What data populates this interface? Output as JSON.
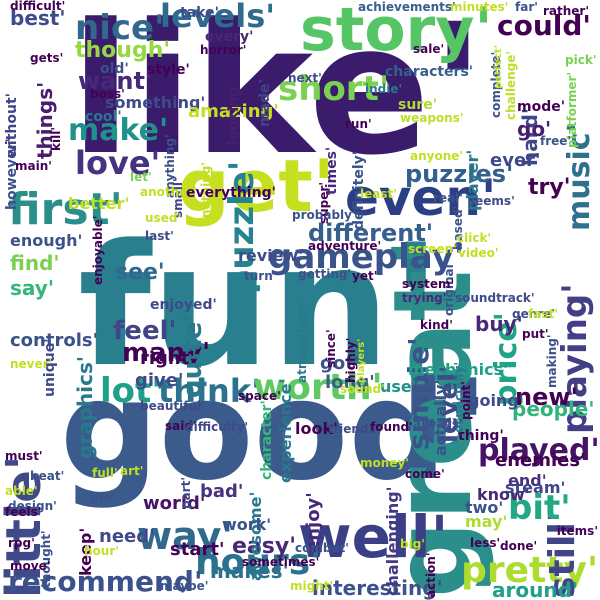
{
  "word_cloud": {
    "words": [
      {
        "id": "like",
        "text": "like'",
        "color": "#3b1b6b"
      },
      {
        "id": "fun",
        "text": "fun'",
        "color": "#2a7f8e"
      },
      {
        "id": "good",
        "text": "good'",
        "color": "#3a5b8c"
      },
      {
        "id": "great",
        "text": "great'",
        "color": "#2b8e8a"
      },
      {
        "id": "story",
        "text": "story'",
        "color": "#56c566"
      },
      {
        "id": "get",
        "text": "get'",
        "color": "#c6e021"
      },
      {
        "id": "well",
        "text": "well'",
        "color": "#3a3f86"
      },
      {
        "id": "first",
        "text": "first'",
        "color": "#2a8f8b"
      },
      {
        "id": "even",
        "text": "even'",
        "color": "#2b3f85"
      },
      {
        "id": "little",
        "text": "little'",
        "color": "#3f4a8a"
      },
      {
        "id": "nice",
        "text": "nice'",
        "color": "#31698e"
      },
      {
        "id": "levels",
        "text": "levels'",
        "color": "#2f6b8e"
      },
      {
        "id": "puzzle",
        "text": "puzzle'",
        "color": "#26828e"
      },
      {
        "id": "music",
        "text": "music'",
        "color": "#2d718e"
      },
      {
        "id": "gameplay",
        "text": "gameplay'",
        "color": "#3a538b"
      },
      {
        "id": "playing",
        "text": "playing'",
        "color": "#433e85"
      },
      {
        "id": "lot",
        "text": "lot'",
        "color": "#1fa088"
      },
      {
        "id": "think",
        "text": "think'",
        "color": "#2c728e"
      },
      {
        "id": "worth",
        "text": "worth'",
        "color": "#5ec962"
      },
      {
        "id": "played",
        "text": "played'",
        "color": "#471365"
      },
      {
        "id": "pretty",
        "text": "pretty'",
        "color": "#addc30"
      },
      {
        "id": "still",
        "text": "still'",
        "color": "#414487"
      },
      {
        "id": "bit",
        "text": "bit'",
        "color": "#22a884"
      },
      {
        "id": "hours",
        "text": "hours'",
        "color": "#2c728e"
      },
      {
        "id": "recommend",
        "text": "recommend'",
        "color": "#3b528b"
      },
      {
        "id": "way",
        "text": "way'",
        "color": "#31688e"
      },
      {
        "id": "short",
        "text": "short'",
        "color": "#7ad151"
      },
      {
        "id": "make",
        "text": "make'",
        "color": "#21918c"
      },
      {
        "id": "love",
        "text": "love'",
        "color": "#46327e"
      },
      {
        "id": "simple",
        "text": "simple'",
        "color": "#3b528b"
      },
      {
        "id": "level",
        "text": "level'",
        "color": "#3e4a89"
      },
      {
        "id": "price",
        "text": "price'",
        "color": "#20a386"
      },
      {
        "id": "could",
        "text": "could'",
        "color": "#440154"
      },
      {
        "id": "hard",
        "text": "hard'",
        "color": "#414487"
      },
      {
        "id": "puzzles",
        "text": "puzzles'",
        "color": "#355f8d"
      },
      {
        "id": "though",
        "text": "though'",
        "color": "#95d840"
      },
      {
        "id": "want",
        "text": "want'",
        "color": "#482878"
      },
      {
        "id": "things",
        "text": "things'",
        "color": "#481f70"
      },
      {
        "id": "best",
        "text": "best'",
        "color": "#3e4a89"
      },
      {
        "id": "feel",
        "text": "feel'",
        "color": "#414487"
      },
      {
        "id": "many",
        "text": "many'",
        "color": "#440154"
      },
      {
        "id": "quite",
        "text": "quite'",
        "color": "#2a788e"
      },
      {
        "id": "see",
        "text": "see'",
        "color": "#31688e"
      },
      {
        "id": "find",
        "text": "find'",
        "color": "#7ad151"
      },
      {
        "id": "say",
        "text": "say'",
        "color": "#35b779"
      },
      {
        "id": "different",
        "text": "different'",
        "color": "#355f8d"
      },
      {
        "id": "new",
        "text": "new'",
        "color": "#440154"
      },
      {
        "id": "graphics",
        "text": "graphics'",
        "color": "#2a788e"
      },
      {
        "id": "go",
        "text": "go'",
        "color": "#481f70"
      },
      {
        "id": "ever",
        "text": "ever'",
        "color": "#3e4a89"
      },
      {
        "id": "try",
        "text": "try'",
        "color": "#440154"
      },
      {
        "id": "easy",
        "text": "easy'",
        "color": "#482878"
      },
      {
        "id": "makes",
        "text": "makes'",
        "color": "#2c728e"
      },
      {
        "id": "interesting",
        "text": "interesting'",
        "color": "#3b528b"
      },
      {
        "id": "around",
        "text": "around'",
        "color": "#1fa088"
      },
      {
        "id": "people",
        "text": "people'",
        "color": "#2fb47c"
      },
      {
        "id": "enemies",
        "text": "enemies'",
        "color": "#440154"
      },
      {
        "id": "end",
        "text": "end'",
        "color": "#46327e"
      },
      {
        "id": "buy",
        "text": "buy'",
        "color": "#482878"
      },
      {
        "id": "actually",
        "text": "actually'",
        "color": "#3b528b"
      },
      {
        "id": "mechanics",
        "text": "mechanics'",
        "color": "#1fa088"
      },
      {
        "id": "review",
        "text": "review'",
        "color": "#3e4a89"
      },
      {
        "id": "controls",
        "text": "controls'",
        "color": "#3b528b"
      },
      {
        "id": "enjoyed",
        "text": "enjoyed'",
        "color": "#3e4a89"
      },
      {
        "id": "long",
        "text": "long'",
        "color": "#355f8d"
      },
      {
        "id": "got",
        "text": "got'",
        "color": "#3b528b"
      },
      {
        "id": "right",
        "text": "right'",
        "color": "#440154"
      },
      {
        "id": "give",
        "text": "give'",
        "color": "#3e4a89"
      },
      {
        "id": "use",
        "text": "use'",
        "color": "#21918c"
      },
      {
        "id": "look",
        "text": "look'",
        "color": "#440154"
      },
      {
        "id": "world",
        "text": "world'",
        "color": "#471365"
      },
      {
        "id": "enjoy",
        "text": "enjoy'",
        "color": "#482878"
      },
      {
        "id": "awesome",
        "text": "awesome'",
        "color": "#2a788e"
      },
      {
        "id": "bad",
        "text": "bad'",
        "color": "#46327e"
      },
      {
        "id": "start",
        "text": "start'",
        "color": "#440154"
      },
      {
        "id": "need",
        "text": "need'",
        "color": "#3e4a89"
      },
      {
        "id": "work",
        "text": "work'",
        "color": "#3b528b"
      },
      {
        "id": "experience",
        "text": "experience'",
        "color": "#2a788e"
      },
      {
        "id": "challenging",
        "text": "challenging'",
        "color": "#443983"
      },
      {
        "id": "going",
        "text": "going'",
        "color": "#3e4a89"
      },
      {
        "id": "keep",
        "text": "keep'",
        "color": "#440154"
      },
      {
        "id": "know",
        "text": "know'",
        "color": "#482878"
      },
      {
        "id": "steam",
        "text": "steam'",
        "color": "#414487"
      },
      {
        "id": "thing",
        "text": "thing'",
        "color": "#440154"
      },
      {
        "id": "two",
        "text": "two'",
        "color": "#3b528b"
      },
      {
        "id": "may",
        "text": "may'",
        "color": "#addc30"
      },
      {
        "id": "character",
        "text": "character'",
        "color": "#35b779"
      },
      {
        "id": "characters",
        "text": "characters'",
        "color": "#355f8d"
      },
      {
        "id": "player",
        "text": "player'",
        "color": "#2a788e"
      },
      {
        "id": "mode",
        "text": "mode'",
        "color": "#440154"
      },
      {
        "id": "enough",
        "text": "enough'",
        "color": "#3b528b"
      },
      {
        "id": "better",
        "text": "better'",
        "color": "#bddf26"
      },
      {
        "id": "something",
        "text": "something'",
        "color": "#3e4a89"
      },
      {
        "id": "amazing",
        "text": "amazing'",
        "color": "#c2df23"
      },
      {
        "id": "looking",
        "text": "looking'",
        "color": "#481f70"
      },
      {
        "id": "made",
        "text": "made'",
        "color": "#414487"
      },
      {
        "id": "style",
        "text": "style'",
        "color": "#440154"
      },
      {
        "id": "old",
        "text": "old'",
        "color": "#3b528b"
      },
      {
        "id": "take",
        "text": "take'",
        "color": "#3e4a89"
      },
      {
        "id": "every",
        "text": "every'",
        "color": "#482878"
      },
      {
        "id": "difficult",
        "text": "difficult'",
        "color": "#440154"
      },
      {
        "id": "achievements",
        "text": "achievements'",
        "color": "#355f8d"
      },
      {
        "id": "minutes",
        "text": "minutes'",
        "color": "#c2df23"
      },
      {
        "id": "far",
        "text": "far'",
        "color": "#3b528b"
      },
      {
        "id": "rather",
        "text": "rather'",
        "color": "#440154"
      },
      {
        "id": "definitely",
        "text": "definitely'",
        "color": "#3b528b"
      },
      {
        "id": "times",
        "text": "times'",
        "color": "#482878"
      },
      {
        "id": "run",
        "text": "run'",
        "color": "#440154"
      },
      {
        "id": "sure",
        "text": "sure'",
        "color": "#addc30"
      },
      {
        "id": "weapons",
        "text": "weapons'",
        "color": "#bddf26"
      },
      {
        "id": "next",
        "text": "next'",
        "color": "#3e4a89"
      },
      {
        "id": "indie",
        "text": "indie'",
        "color": "#2a788e"
      },
      {
        "id": "sale",
        "text": "sale'",
        "color": "#440154"
      },
      {
        "id": "complete",
        "text": "complete'",
        "color": "#3b528b"
      },
      {
        "id": "perfect",
        "text": "perfect'",
        "color": "#bddf26"
      },
      {
        "id": "pick",
        "text": "pick'",
        "color": "#7ad151"
      },
      {
        "id": "challenge",
        "text": "challenge'",
        "color": "#bddf26"
      },
      {
        "id": "platformer",
        "text": "platformer'",
        "color": "#7ad151"
      },
      {
        "id": "free",
        "text": "free'",
        "color": "#3b528b"
      },
      {
        "id": "anyone",
        "text": "anyone'",
        "color": "#c2df23"
      },
      {
        "id": "horror",
        "text": "horror'",
        "color": "#440154"
      },
      {
        "id": "gets",
        "text": "gets'",
        "color": "#440154"
      },
      {
        "id": "cool",
        "text": "cool'",
        "color": "#2a788e"
      },
      {
        "id": "boss",
        "text": "boss'",
        "color": "#440154"
      },
      {
        "id": "kill",
        "text": "kill'",
        "color": "#440154"
      },
      {
        "id": "main",
        "text": "main'",
        "color": "#440154"
      },
      {
        "id": "however",
        "text": "however'",
        "color": "#3b528b"
      },
      {
        "id": "without",
        "text": "without'",
        "color": "#414487"
      },
      {
        "id": "small",
        "text": "small'",
        "color": "#414487"
      },
      {
        "id": "anything",
        "text": "anything'",
        "color": "#3b528b"
      },
      {
        "id": "nothing",
        "text": "nothing'",
        "color": "#c2df23"
      },
      {
        "id": "let",
        "text": "let'",
        "color": "#7ad151"
      },
      {
        "id": "another",
        "text": "another'",
        "color": "#c2df23"
      },
      {
        "id": "everything",
        "text": "everything'",
        "color": "#440154"
      },
      {
        "id": "super",
        "text": "super'",
        "color": "#440154"
      },
      {
        "id": "least",
        "text": "least'",
        "color": "#c2df23"
      },
      {
        "id": "real",
        "text": "real'",
        "color": "#3b528b"
      },
      {
        "id": "seems",
        "text": "seems'",
        "color": "#3e4a89"
      },
      {
        "id": "based",
        "text": "based'",
        "color": "#3b528b"
      },
      {
        "id": "used",
        "text": "used'",
        "color": "#c2df23"
      },
      {
        "id": "last",
        "text": "last'",
        "color": "#3e4a89"
      },
      {
        "id": "probably",
        "text": "probably'",
        "color": "#3b528b"
      },
      {
        "id": "adventure",
        "text": "adventure'",
        "color": "#440154"
      },
      {
        "id": "screen",
        "text": "screen'",
        "color": "#c2df23"
      },
      {
        "id": "click",
        "text": "click'",
        "color": "#c2df23"
      },
      {
        "id": "video",
        "text": "video'",
        "color": "#c2df23"
      },
      {
        "id": "original",
        "text": "original'",
        "color": "#3b528b"
      },
      {
        "id": "enjoyable",
        "text": "enjoyable'",
        "color": "#440154"
      },
      {
        "id": "turn",
        "text": "turn'",
        "color": "#3b528b"
      },
      {
        "id": "getting",
        "text": "getting'",
        "color": "#3b528b"
      },
      {
        "id": "yet",
        "text": "yet'",
        "color": "#440154"
      },
      {
        "id": "system",
        "text": "system'",
        "color": "#440154"
      },
      {
        "id": "trying",
        "text": "trying'",
        "color": "#482878"
      },
      {
        "id": "soundtrack",
        "text": "soundtrack'",
        "color": "#3e4a89"
      },
      {
        "id": "genre",
        "text": "genre'",
        "color": "#3e4a89"
      },
      {
        "id": "fast",
        "text": "fast'",
        "color": "#bddf26"
      },
      {
        "id": "put",
        "text": "put'",
        "color": "#440154"
      },
      {
        "id": "making",
        "text": "making'",
        "color": "#3b528b"
      },
      {
        "id": "kind",
        "text": "kind'",
        "color": "#440154"
      },
      {
        "id": "atmosphere",
        "text": "atmosphere'",
        "color": "#2a788e"
      },
      {
        "id": "highly",
        "text": "highly'",
        "color": "#440154"
      },
      {
        "id": "since",
        "text": "since'",
        "color": "#440154"
      },
      {
        "id": "players",
        "text": "players'",
        "color": "#c2df23"
      },
      {
        "id": "sound",
        "text": "sound'",
        "color": "#c2df23"
      },
      {
        "id": "especially",
        "text": "especially'",
        "color": "#2a788e"
      },
      {
        "id": "point",
        "text": "point'",
        "color": "#440154"
      },
      {
        "id": "unique",
        "text": "unique'",
        "color": "#3e4a89"
      },
      {
        "id": "never",
        "text": "never'",
        "color": "#c2df23"
      },
      {
        "id": "beautiful",
        "text": "beautiful'",
        "color": "#3e4a89"
      },
      {
        "id": "space",
        "text": "space'",
        "color": "#440154"
      },
      {
        "id": "said",
        "text": "said'",
        "color": "#440154"
      },
      {
        "id": "difficulty",
        "text": "difficulty'",
        "color": "#3e4a89"
      },
      {
        "id": "friends",
        "text": "friends'",
        "color": "#3e4a89"
      },
      {
        "id": "found",
        "text": "found'",
        "color": "#440154"
      },
      {
        "id": "always",
        "text": "always'",
        "color": "#3b528b"
      },
      {
        "id": "must",
        "text": "must'",
        "color": "#440154"
      },
      {
        "id": "beat",
        "text": "beat'",
        "color": "#3b528b"
      },
      {
        "id": "able",
        "text": "able'",
        "color": "#c2df23"
      },
      {
        "id": "full",
        "text": "full'",
        "color": "#c2df23"
      },
      {
        "id": "design",
        "text": "design'",
        "color": "#3b528b"
      },
      {
        "id": "art",
        "text": "art'",
        "color": "#c2df23"
      },
      {
        "id": "life",
        "text": "life'",
        "color": "#3b528b"
      },
      {
        "id": "part",
        "text": "part'",
        "color": "#3e4a89"
      },
      {
        "id": "money",
        "text": "money'",
        "color": "#c2df23"
      },
      {
        "id": "come",
        "text": "come'",
        "color": "#440154"
      },
      {
        "id": "feels",
        "text": "feels'",
        "color": "#440154"
      },
      {
        "id": "rpg",
        "text": "rpg'",
        "color": "#440154"
      },
      {
        "id": "thought",
        "text": "thought'",
        "color": "#3b528b"
      },
      {
        "id": "hour",
        "text": "hour'",
        "color": "#c2df23"
      },
      {
        "id": "sometimes",
        "text": "sometimes'",
        "color": "#440154"
      },
      {
        "id": "combat",
        "text": "combat'",
        "color": "#3b528b"
      },
      {
        "id": "big",
        "text": "big'",
        "color": "#c2df23"
      },
      {
        "id": "action",
        "text": "action'",
        "color": "#440154"
      },
      {
        "id": "less",
        "text": "less'",
        "color": "#440154"
      },
      {
        "id": "done",
        "text": "done'",
        "color": "#440154"
      },
      {
        "id": "items",
        "text": "items'",
        "color": "#440154"
      },
      {
        "id": "move",
        "text": "move'",
        "color": "#440154"
      },
      {
        "id": "maybe",
        "text": "maybe'",
        "color": "#3b528b"
      },
      {
        "id": "might",
        "text": "might'",
        "color": "#c2df23"
      }
    ]
  }
}
